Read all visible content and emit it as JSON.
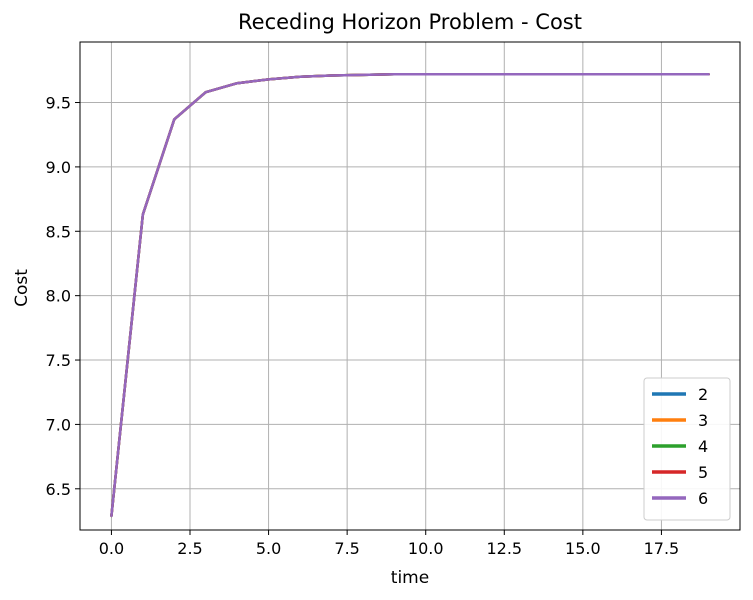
{
  "chart_data": {
    "type": "line",
    "title": "Receding Horizon Problem - Cost",
    "xlabel": "time",
    "ylabel": "Cost",
    "xlim": [
      -1.0,
      20.0
    ],
    "ylim": [
      6.18,
      9.97
    ],
    "xticks": [
      "0.0",
      "2.5",
      "5.0",
      "7.5",
      "10.0",
      "12.5",
      "15.0",
      "17.5"
    ],
    "xtick_values": [
      0,
      2.5,
      5,
      7.5,
      10,
      12.5,
      15,
      17.5
    ],
    "yticks": [
      "6.5",
      "7.0",
      "7.5",
      "8.0",
      "8.5",
      "9.0",
      "9.5"
    ],
    "ytick_values": [
      6.5,
      7.0,
      7.5,
      8.0,
      8.5,
      9.0,
      9.5
    ],
    "grid": true,
    "legend_position": "bottom-right",
    "x": [
      0,
      1,
      2,
      3,
      4,
      5,
      6,
      7,
      8,
      9,
      10,
      11,
      12,
      13,
      14,
      15,
      16,
      17,
      18,
      19
    ],
    "series": [
      {
        "name": "2",
        "color": "#1f77b4",
        "values": [
          6.29,
          8.63,
          9.37,
          9.58,
          9.65,
          9.68,
          9.7,
          9.71,
          9.715,
          9.72,
          9.72,
          9.72,
          9.72,
          9.72,
          9.72,
          9.72,
          9.72,
          9.72,
          9.72,
          9.72
        ]
      },
      {
        "name": "3",
        "color": "#ff7f0e",
        "values": [
          6.29,
          8.63,
          9.37,
          9.58,
          9.65,
          9.68,
          9.7,
          9.71,
          9.715,
          9.72,
          9.72,
          9.72,
          9.72,
          9.72,
          9.72,
          9.72,
          9.72,
          9.72,
          9.72,
          9.72
        ]
      },
      {
        "name": "4",
        "color": "#2ca02c",
        "values": [
          6.29,
          8.63,
          9.37,
          9.58,
          9.65,
          9.68,
          9.7,
          9.71,
          9.715,
          9.72,
          9.72,
          9.72,
          9.72,
          9.72,
          9.72,
          9.72,
          9.72,
          9.72,
          9.72,
          9.72
        ]
      },
      {
        "name": "5",
        "color": "#d62728",
        "values": [
          6.29,
          8.63,
          9.37,
          9.58,
          9.65,
          9.68,
          9.7,
          9.71,
          9.715,
          9.72,
          9.72,
          9.72,
          9.72,
          9.72,
          9.72,
          9.72,
          9.72,
          9.72,
          9.72,
          9.72
        ]
      },
      {
        "name": "6",
        "color": "#9467bd",
        "values": [
          6.29,
          8.63,
          9.37,
          9.58,
          9.65,
          9.68,
          9.7,
          9.71,
          9.715,
          9.72,
          9.72,
          9.72,
          9.72,
          9.72,
          9.72,
          9.72,
          9.72,
          9.72,
          9.72,
          9.72
        ]
      }
    ]
  }
}
